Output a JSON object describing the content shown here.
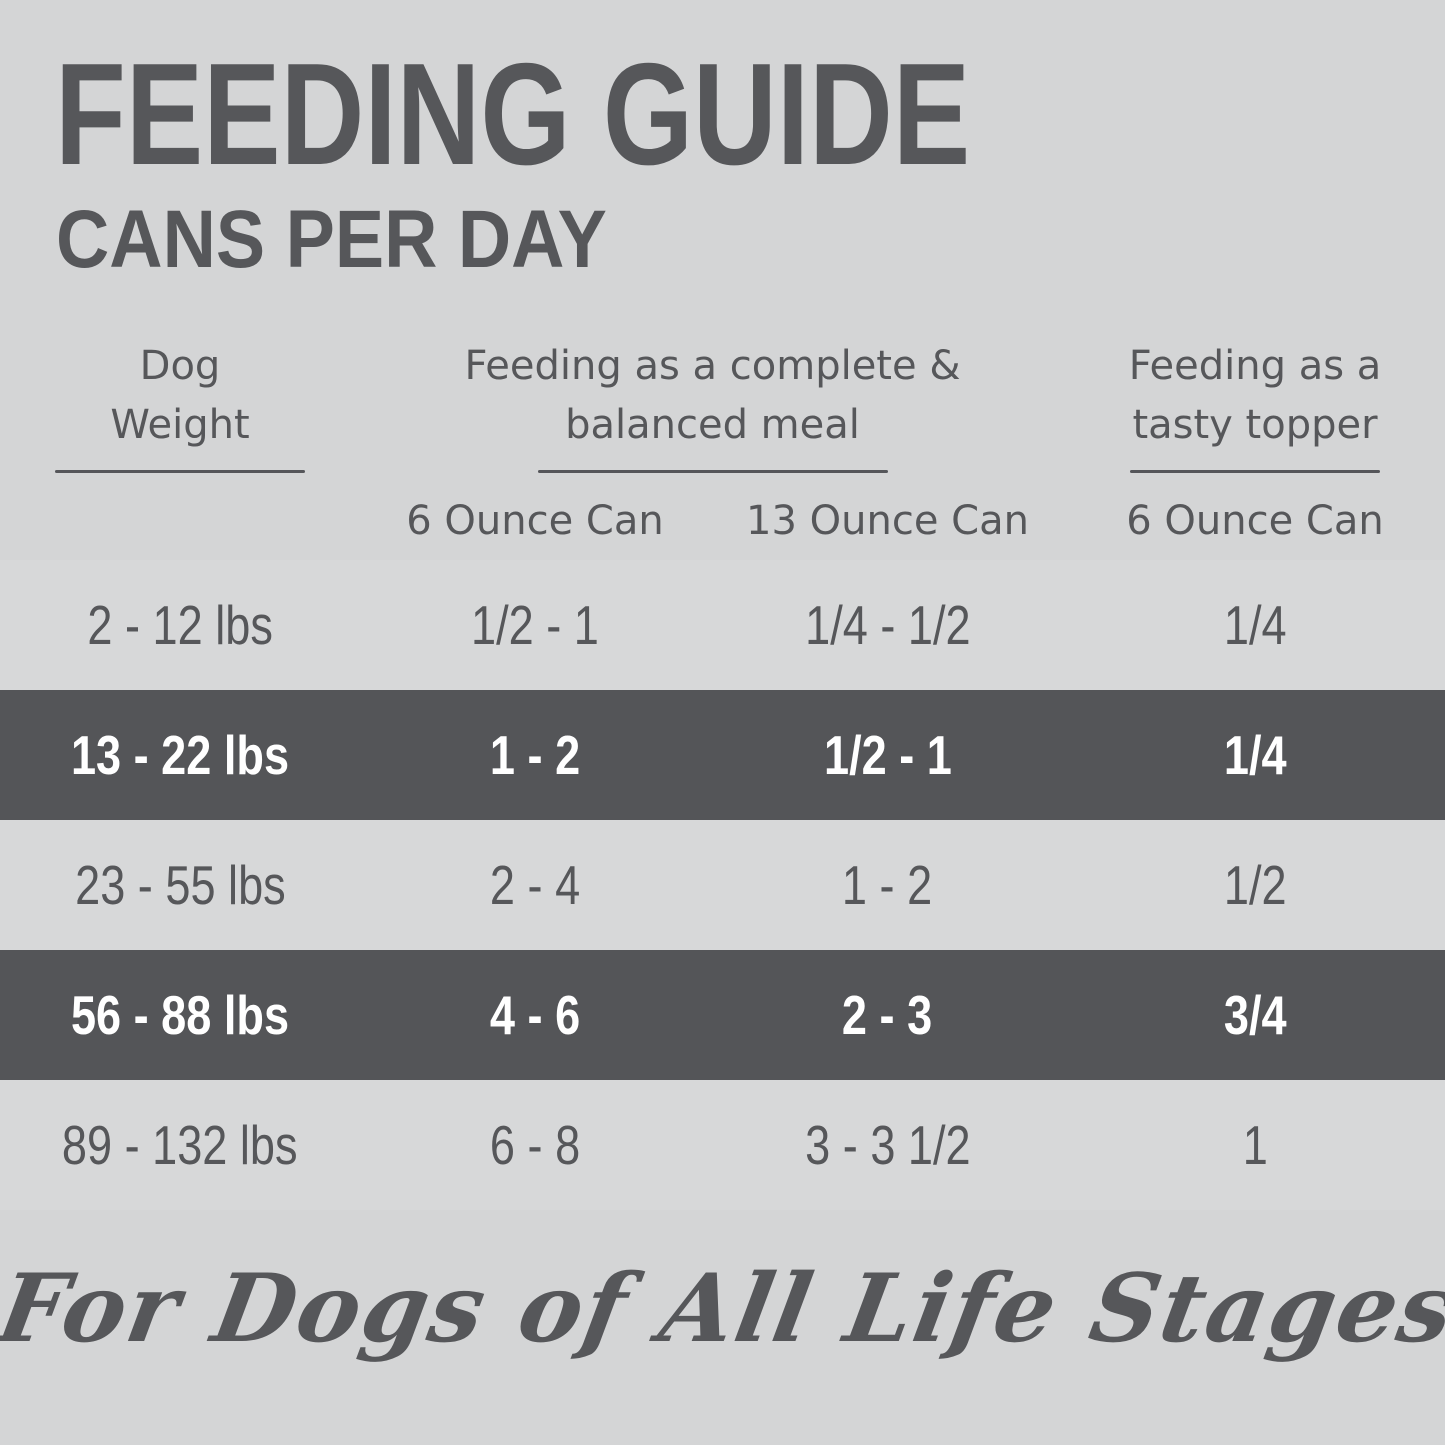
{
  "header": {
    "title": "FEEDING GUIDE",
    "subtitle": "CANS PER DAY"
  },
  "chart_data": {
    "type": "table",
    "title": "FEEDING GUIDE",
    "subtitle": "CANS PER DAY",
    "column_groups": [
      "Dog Weight",
      "Feeding as a complete & balanced meal",
      "Feeding as a tasty topper"
    ],
    "columns": [
      "6 Ounce Can",
      "13 Ounce Can",
      "6 Ounce Can"
    ],
    "rows": [
      [
        "2 - 12 lbs",
        "1/2 - 1",
        "1/4 - 1/2",
        "1/4"
      ],
      [
        "13 - 22 lbs",
        "1 - 2",
        "1/2 - 1",
        "1/4"
      ],
      [
        "23 - 55 lbs",
        "2 - 4",
        "1 - 2",
        "1/2"
      ],
      [
        "56 - 88 lbs",
        "4 - 6",
        "2 - 3",
        "3/4"
      ],
      [
        "89 - 132 lbs",
        "6 - 8",
        "3 - 3 1/2",
        "1"
      ]
    ],
    "highlighted_row_indices": [
      1,
      3
    ],
    "footnote": "For Dogs of All Life Stages"
  },
  "footer": {
    "tagline": "For Dogs of All Life Stages"
  },
  "colors": {
    "page-bg": "#d4d5d6",
    "row-light": "#d7d8d9",
    "row-dark": "#545558",
    "ink": "#56575a",
    "highlight-text": "#ffffff",
    "rule": "#55565a"
  }
}
